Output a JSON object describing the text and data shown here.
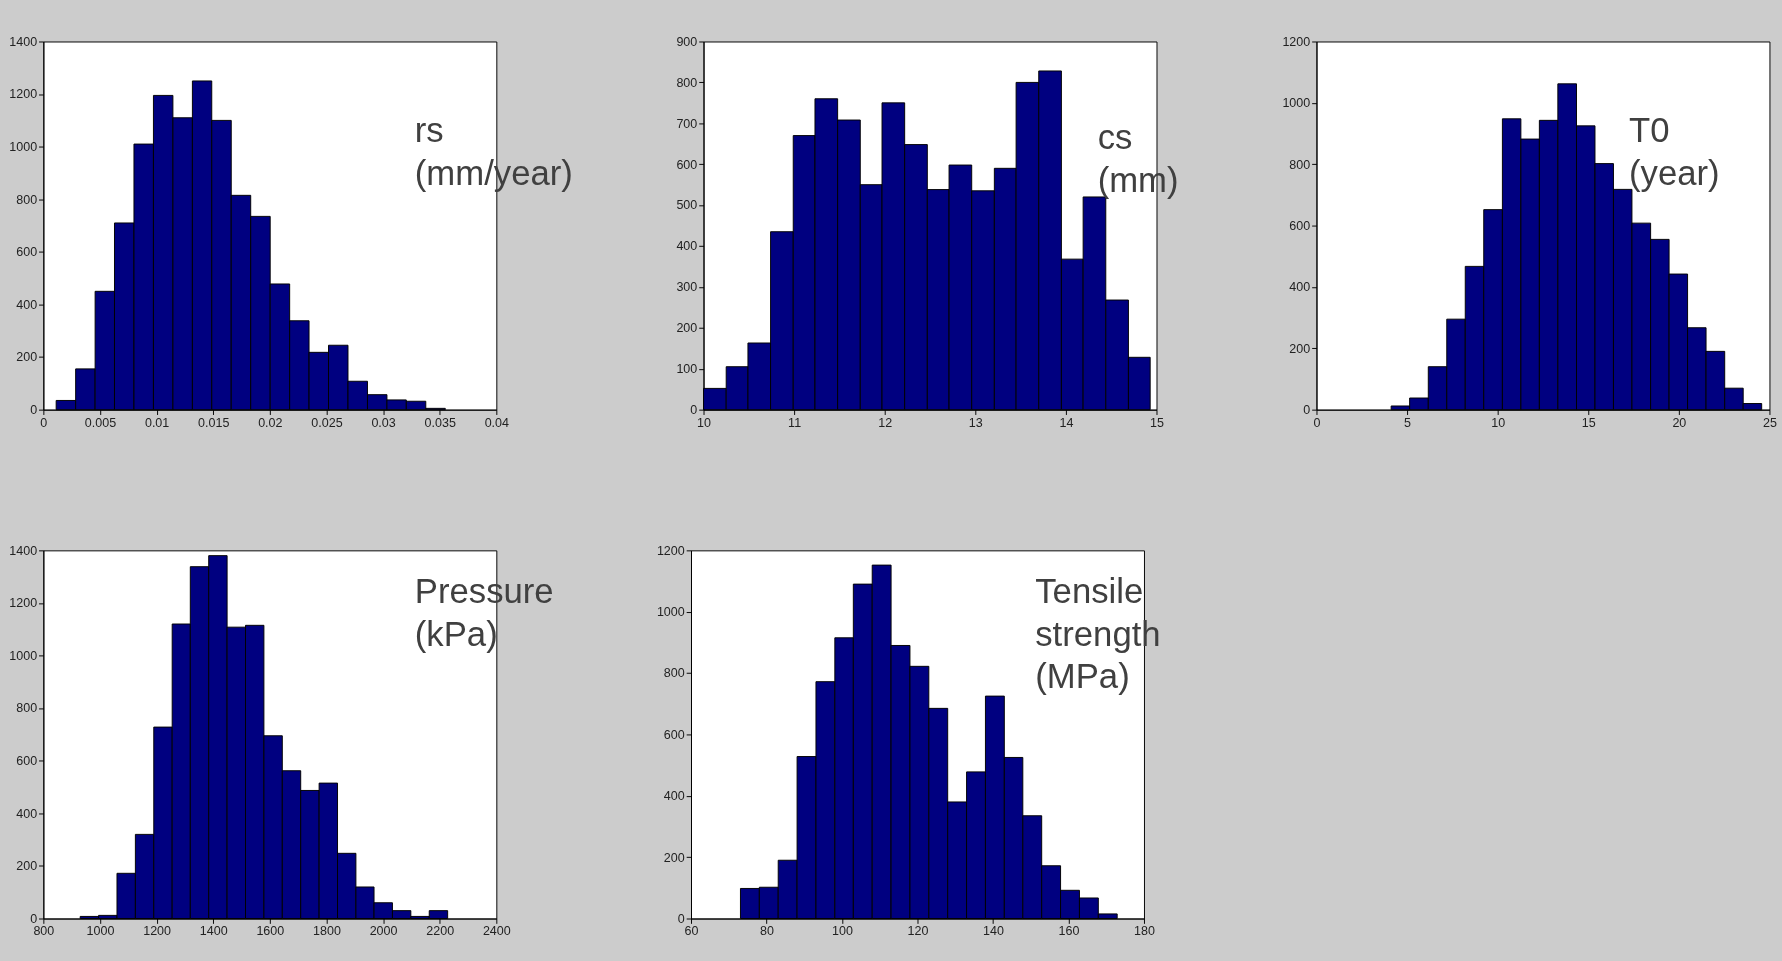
{
  "chart_data": [
    {
      "type": "histogram",
      "annotations": [
        "rs\n(mm/year)"
      ],
      "color": "#000080",
      "bins": [
        0.00113,
        0.00285,
        0.00457,
        0.00628,
        0.008,
        0.00972,
        0.01144,
        0.01316,
        0.01487,
        0.01659,
        0.01831,
        0.02003,
        0.02175,
        0.02346,
        0.02518,
        0.0269,
        0.02862,
        0.03034,
        0.03205,
        0.03377,
        0.03549
      ],
      "values": [
        35,
        155,
        450,
        710,
        1010,
        1195,
        1110,
        1250,
        1100,
        815,
        735,
        478,
        338,
        218,
        245,
        108,
        57,
        37,
        32,
        5
      ],
      "xlim": [
        0,
        0.04
      ],
      "xticks": [
        0,
        0.005,
        0.01,
        0.015,
        0.02,
        0.025,
        0.03,
        0.035,
        0.04
      ],
      "ylim": [
        0,
        1400
      ],
      "yticks": [
        0,
        200,
        400,
        600,
        800,
        1000,
        1200,
        1400
      ],
      "grid": false
    },
    {
      "type": "histogram",
      "annotations": [
        "cs\n(mm)"
      ],
      "color": "#000080",
      "bins": [
        10.0,
        10.25,
        10.49,
        10.74,
        10.99,
        11.23,
        11.48,
        11.73,
        11.97,
        12.22,
        12.47,
        12.71,
        12.96,
        13.21,
        13.45,
        13.7,
        13.95,
        14.19,
        14.44,
        14.69,
        14.93
      ],
      "values": [
        52,
        105,
        163,
        435,
        670,
        760,
        708,
        550,
        750,
        648,
        538,
        598,
        535,
        590,
        800,
        828,
        368,
        520,
        268,
        128
      ],
      "xlim": [
        10,
        15
      ],
      "xticks": [
        10,
        11,
        12,
        13,
        14,
        15
      ],
      "ylim": [
        0,
        900
      ],
      "yticks": [
        0,
        100,
        200,
        300,
        400,
        500,
        600,
        700,
        800,
        900
      ],
      "grid": false
    },
    {
      "type": "histogram",
      "annotations": [
        "T0\n(year)"
      ],
      "color": "#000080",
      "bins": [
        4.12,
        5.14,
        6.17,
        7.19,
        8.21,
        9.23,
        10.26,
        11.28,
        12.3,
        13.32,
        14.35,
        15.37,
        16.39,
        17.41,
        18.44,
        19.46,
        20.48,
        21.5,
        22.53,
        23.55,
        24.57
      ],
      "values": [
        12,
        38,
        140,
        295,
        467,
        652,
        948,
        882,
        943,
        1062,
        925,
        802,
        718,
        608,
        555,
        442,
        267,
        190,
        70,
        20
      ],
      "xlim": [
        0,
        25
      ],
      "xticks": [
        0,
        5,
        10,
        15,
        20,
        25
      ],
      "ylim": [
        0,
        1200
      ],
      "yticks": [
        0,
        200,
        400,
        600,
        800,
        1000,
        1200
      ],
      "grid": false
    },
    {
      "type": "histogram",
      "annotations": [
        "Pressure\n(kPa)"
      ],
      "color": "#000080",
      "bins": [
        930,
        995,
        1060,
        1125,
        1190,
        1255,
        1319,
        1384,
        1449,
        1514,
        1579,
        1644,
        1709,
        1774,
        1839,
        1904,
        1968,
        2033,
        2098,
        2163,
        2228
      ],
      "values": [
        8,
        12,
        172,
        320,
        728,
        1120,
        1338,
        1380,
        1108,
        1115,
        695,
        562,
        487,
        515,
        248,
        120,
        60,
        30,
        8,
        30
      ],
      "xlim": [
        800,
        2400
      ],
      "xticks": [
        800,
        1000,
        1200,
        1400,
        1600,
        1800,
        2000,
        2200,
        2400
      ],
      "ylim": [
        0,
        1400
      ],
      "yticks": [
        0,
        200,
        400,
        600,
        800,
        1000,
        1200,
        1400
      ],
      "grid": false
    },
    {
      "type": "histogram",
      "annotations": [
        "Tensile\nstrength\n(MPa)"
      ],
      "color": "#000080",
      "bins": [
        73.1,
        78.1,
        83.1,
        88.1,
        93.1,
        98.1,
        103.0,
        108.0,
        113.0,
        118.0,
        123.0,
        128.0,
        133.0,
        138.0,
        143.0,
        147.9,
        152.9,
        157.9,
        162.9,
        167.9,
        172.9
      ],
      "values": [
        98,
        102,
        190,
        528,
        772,
        915,
        1090,
        1152,
        890,
        822,
        685,
        380,
        478,
        725,
        525,
        335,
        172,
        92,
        67,
        15
      ],
      "xlim": [
        60,
        180
      ],
      "xticks": [
        60,
        80,
        100,
        120,
        140,
        160,
        180
      ],
      "ylim": [
        0,
        1200
      ],
      "yticks": [
        0,
        200,
        400,
        600,
        800,
        1000,
        1200
      ],
      "grid": false
    }
  ]
}
